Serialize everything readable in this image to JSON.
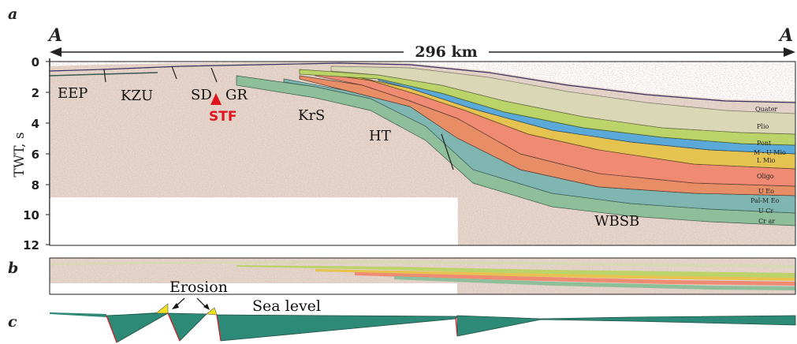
{
  "panels": {
    "a": "a",
    "b": "b",
    "c": "c"
  },
  "profile": {
    "start": "A",
    "end": "A",
    "distance": "296 km"
  },
  "axis": {
    "label": "TWT, s",
    "ticks": [
      "0",
      "2",
      "4",
      "6",
      "8",
      "10",
      "12"
    ]
  },
  "regions": {
    "eep": "EEP",
    "kzu": "KZU",
    "sd": "SD",
    "gr": "GR",
    "stf": "STF",
    "krs": "KrS",
    "ht": "HT",
    "wbsb": "WBSB"
  },
  "units": [
    "Quater",
    "Plio",
    "Pont",
    "M - U Mio",
    "L Mio",
    "Oligo",
    "U Eo",
    "Pal-M Eo",
    "U Cr",
    "Cr ar"
  ],
  "annotations": {
    "erosion": "Erosion",
    "sea_level": "Sea level"
  },
  "colors": {
    "seismic_bg": "#e6d6cc",
    "maastrichtian": "#8fbf9a",
    "paleogene": "#e88e66",
    "oligocene": "#ef8a73",
    "lower_miocene": "#e6c251",
    "mid_miocene": "#5aa9d8",
    "pontian": "#bcd36a",
    "pliocene": "#d8d9b4",
    "wedge": "#2d8a76",
    "fault": "#e0141c"
  }
}
